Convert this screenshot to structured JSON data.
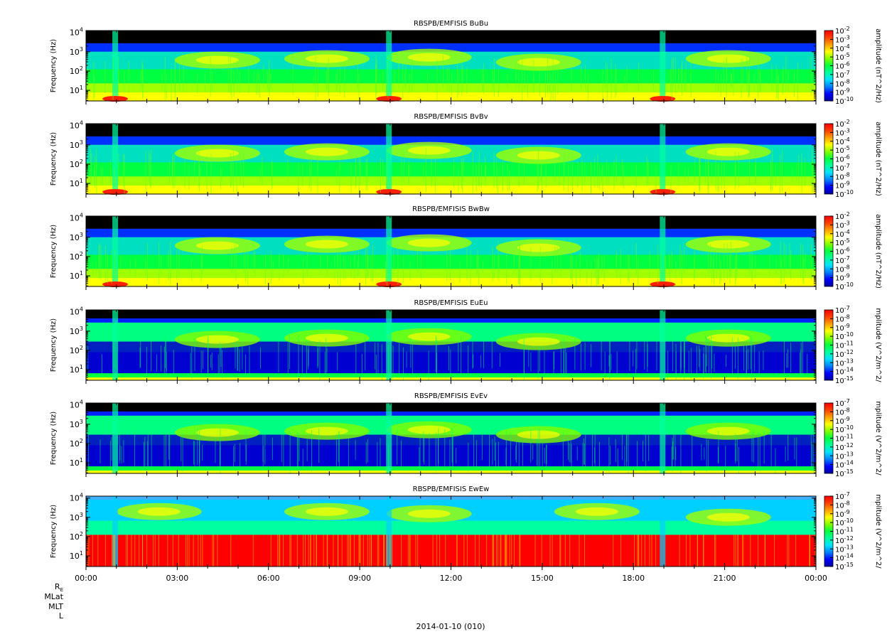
{
  "chart_data": [
    {
      "type": "heatmap",
      "title": "RBSPB/EMFISIS  BuBu",
      "ylabel": "Frequency (Hz)",
      "colorbar_label": "amplitude (nT^2/Hz)",
      "colorbar_exponents": [
        -2,
        -3,
        -4,
        -5,
        -6,
        -7,
        -8,
        -9,
        -10
      ],
      "y_scale": "log",
      "y_ticks": [
        {
          "base": "10",
          "exp": "1"
        },
        {
          "base": "10",
          "exp": "2"
        },
        {
          "base": "10",
          "exp": "3"
        },
        {
          "base": "10",
          "exp": "4"
        }
      ],
      "variant": "B"
    },
    {
      "type": "heatmap",
      "title": "RBSPB/EMFISIS  BvBv",
      "ylabel": "Frequency (Hz)",
      "colorbar_label": "amplitude (nT^2/Hz)",
      "colorbar_exponents": [
        -2,
        -3,
        -4,
        -5,
        -6,
        -7,
        -8,
        -9,
        -10
      ],
      "y_scale": "log",
      "y_ticks": [
        {
          "base": "10",
          "exp": "1"
        },
        {
          "base": "10",
          "exp": "2"
        },
        {
          "base": "10",
          "exp": "3"
        },
        {
          "base": "10",
          "exp": "4"
        }
      ],
      "variant": "B"
    },
    {
      "type": "heatmap",
      "title": "RBSPB/EMFISIS  BwBw",
      "ylabel": "Frequency (Hz)",
      "colorbar_label": "amplitude (nT^2/Hz)",
      "colorbar_exponents": [
        -2,
        -3,
        -4,
        -5,
        -6,
        -7,
        -8,
        -9,
        -10
      ],
      "y_scale": "log",
      "y_ticks": [
        {
          "base": "10",
          "exp": "1"
        },
        {
          "base": "10",
          "exp": "2"
        },
        {
          "base": "10",
          "exp": "3"
        },
        {
          "base": "10",
          "exp": "4"
        }
      ],
      "variant": "Bw"
    },
    {
      "type": "heatmap",
      "title": "RBSPB/EMFISIS  EuEu",
      "ylabel": "Frequency (Hz)",
      "colorbar_label": "mplitude (V^2/m^2/",
      "colorbar_exponents": [
        -7,
        -8,
        -9,
        -10,
        -11,
        -12,
        -13,
        -14,
        -15
      ],
      "y_scale": "log",
      "y_ticks": [
        {
          "base": "10",
          "exp": "1"
        },
        {
          "base": "10",
          "exp": "2"
        },
        {
          "base": "10",
          "exp": "3"
        },
        {
          "base": "10",
          "exp": "4"
        }
      ],
      "variant": "E"
    },
    {
      "type": "heatmap",
      "title": "RBSPB/EMFISIS  EvEv",
      "ylabel": "Frequency (Hz)",
      "colorbar_label": "mplitude (V^2/m^2/",
      "colorbar_exponents": [
        -7,
        -8,
        -9,
        -10,
        -11,
        -12,
        -13,
        -14,
        -15
      ],
      "y_scale": "log",
      "y_ticks": [
        {
          "base": "10",
          "exp": "1"
        },
        {
          "base": "10",
          "exp": "2"
        },
        {
          "base": "10",
          "exp": "3"
        },
        {
          "base": "10",
          "exp": "4"
        }
      ],
      "variant": "E"
    },
    {
      "type": "heatmap",
      "title": "RBSPB/EMFISIS  EwEw",
      "ylabel": "Frequency (Hz)",
      "colorbar_label": "mplitude (V^2/m^2/",
      "colorbar_exponents": [
        -7,
        -8,
        -9,
        -10,
        -11,
        -12,
        -13,
        -14,
        -15
      ],
      "y_scale": "log",
      "y_ticks": [
        {
          "base": "10",
          "exp": "1"
        },
        {
          "base": "10",
          "exp": "2"
        },
        {
          "base": "10",
          "exp": "3"
        },
        {
          "base": "10",
          "exp": "4"
        }
      ],
      "variant": "Ew"
    }
  ],
  "x_axis": {
    "ticks": [
      "00:00",
      "03:00",
      "06:00",
      "09:00",
      "12:00",
      "15:00",
      "18:00",
      "21:00",
      "00:00"
    ],
    "ephemeris_labels": [
      "R",
      "MLat",
      "MLT",
      "L"
    ],
    "ephemeris_subscript": "E",
    "date_label": "2014-01-10 (010)"
  },
  "colors": {
    "colormap": [
      "#0000a0",
      "#0000ff",
      "#0080ff",
      "#00e0ff",
      "#00ffa0",
      "#00ff40",
      "#80ff00",
      "#ffff00",
      "#ffa000",
      "#ff4000",
      "#ff0000"
    ],
    "background_low": "#000000"
  }
}
